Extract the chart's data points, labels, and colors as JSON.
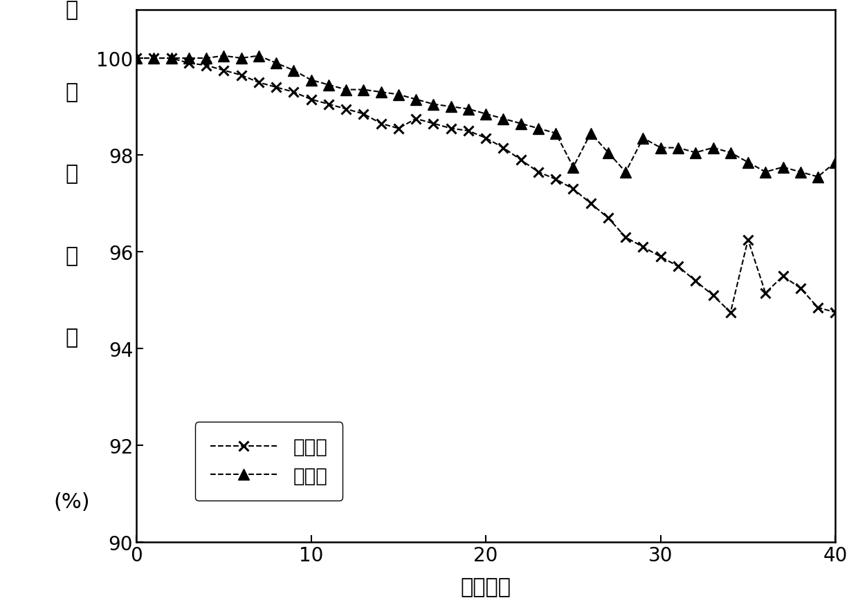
{
  "untreated_x": [
    0,
    1,
    2,
    3,
    4,
    5,
    6,
    7,
    8,
    9,
    10,
    11,
    12,
    13,
    14,
    15,
    16,
    17,
    18,
    19,
    20,
    21,
    22,
    23,
    24,
    25,
    26,
    27,
    28,
    29,
    30,
    31,
    32,
    33,
    34,
    35,
    36,
    37,
    38,
    39,
    40
  ],
  "untreated_y": [
    100.0,
    100.0,
    100.0,
    99.9,
    99.85,
    99.75,
    99.65,
    99.5,
    99.4,
    99.3,
    99.15,
    99.05,
    98.95,
    98.85,
    98.65,
    98.55,
    98.75,
    98.65,
    98.55,
    98.5,
    98.35,
    98.15,
    97.9,
    97.65,
    97.5,
    97.3,
    97.0,
    96.7,
    96.3,
    96.1,
    95.9,
    95.7,
    95.4,
    95.1,
    94.75,
    96.25,
    95.15,
    95.5,
    95.25,
    94.85,
    94.75
  ],
  "treated_x": [
    0,
    1,
    2,
    3,
    4,
    5,
    6,
    7,
    8,
    9,
    10,
    11,
    12,
    13,
    14,
    15,
    16,
    17,
    18,
    19,
    20,
    21,
    22,
    23,
    24,
    25,
    26,
    27,
    28,
    29,
    30,
    31,
    32,
    33,
    34,
    35,
    36,
    37,
    38,
    39,
    40
  ],
  "treated_y": [
    100.0,
    100.0,
    100.0,
    100.0,
    100.0,
    100.05,
    100.0,
    100.05,
    99.9,
    99.75,
    99.55,
    99.45,
    99.35,
    99.35,
    99.3,
    99.25,
    99.15,
    99.05,
    99.0,
    98.95,
    98.85,
    98.75,
    98.65,
    98.55,
    98.45,
    97.75,
    98.45,
    98.05,
    97.65,
    98.35,
    98.15,
    98.15,
    98.05,
    98.15,
    98.05,
    97.85,
    97.65,
    97.75,
    97.65,
    97.55,
    97.85
  ],
  "xlabel": "循环周数",
  "ylabel_lines": [
    "循",
    "环",
    "保",
    "持",
    "率",
    "",
    "(%)"
  ],
  "xlim": [
    0,
    40
  ],
  "ylim": [
    90,
    101
  ],
  "yticks": [
    90,
    92,
    94,
    96,
    98,
    100
  ],
  "xticks": [
    0,
    10,
    20,
    30,
    40
  ],
  "legend_untreated": "未处理",
  "legend_treated": "处理后",
  "line_color": "#000000",
  "bg_color": "#ffffff"
}
